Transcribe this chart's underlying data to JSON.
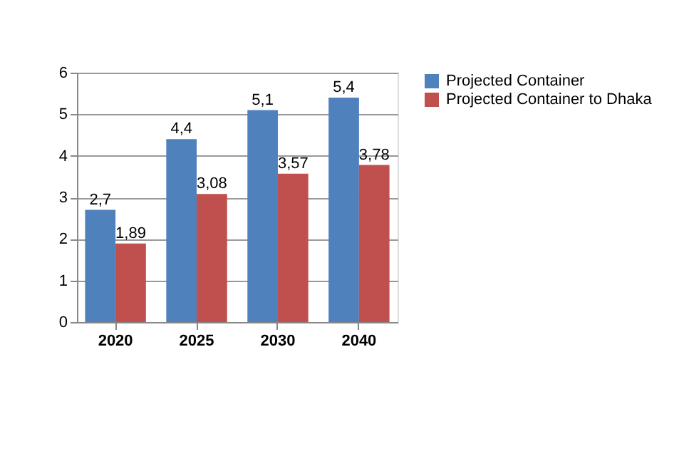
{
  "chart_data": {
    "type": "bar",
    "categories": [
      "2020",
      "2025",
      "2030",
      "2040"
    ],
    "series": [
      {
        "name": "Projected Container",
        "color": "#4f81bd",
        "values": [
          2.7,
          4.4,
          5.1,
          5.4
        ],
        "value_labels": [
          "2,7",
          "4,4",
          "5,1",
          "5,4"
        ]
      },
      {
        "name": "Projected Container to Dhaka",
        "color": "#c0504d",
        "values": [
          1.89,
          3.08,
          3.57,
          3.78
        ],
        "value_labels": [
          "1,89",
          "3,08",
          "3,57",
          "3,78"
        ]
      }
    ],
    "ylim": [
      0,
      6
    ],
    "yticks": [
      0,
      1,
      2,
      3,
      4,
      5,
      6
    ],
    "grid": "y",
    "legend": "right"
  }
}
